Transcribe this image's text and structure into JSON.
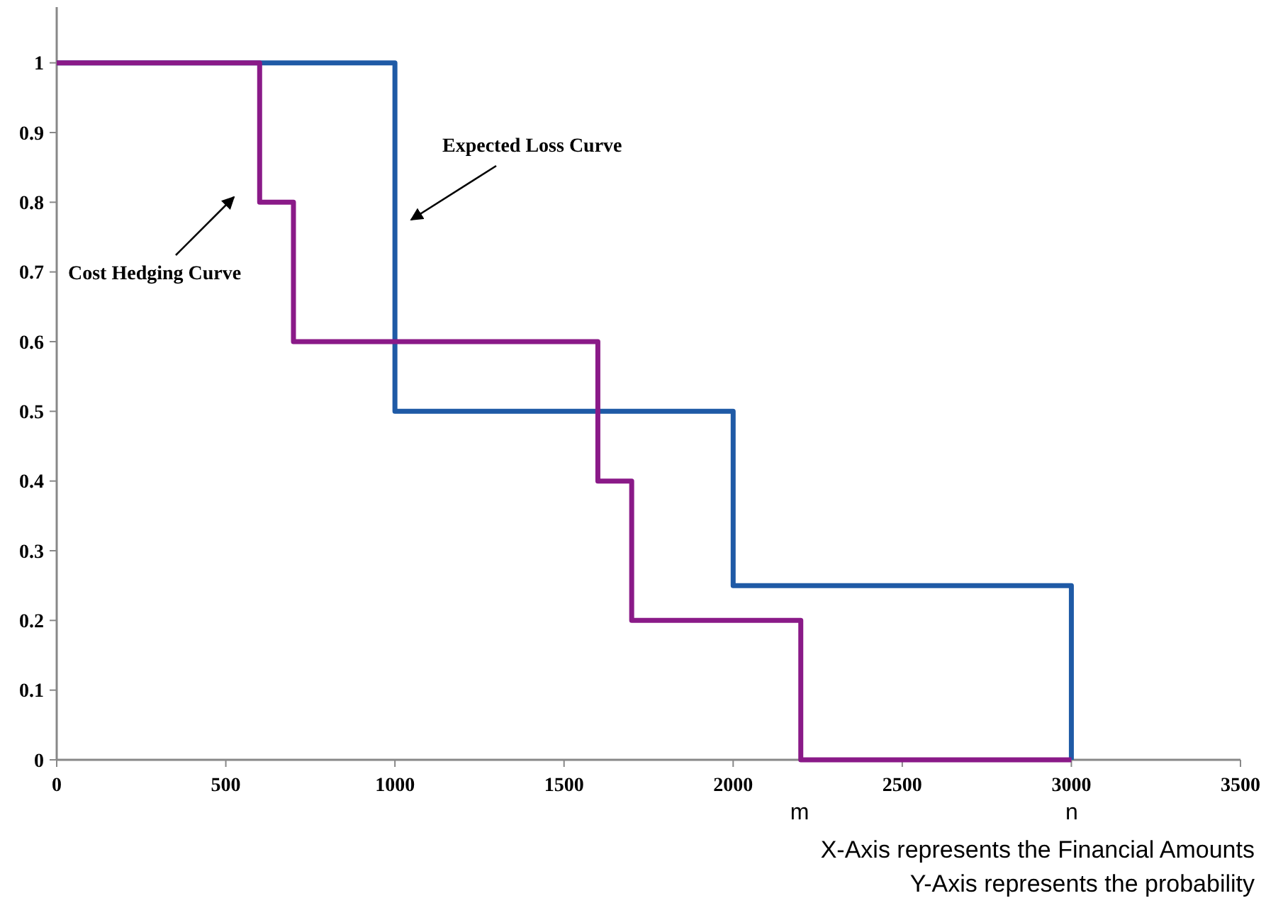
{
  "chart_data": {
    "type": "step",
    "xlim": [
      0,
      3500
    ],
    "xticks": [
      0,
      500,
      1000,
      1500,
      2000,
      2500,
      3000,
      3500
    ],
    "ylim": [
      0,
      1.08
    ],
    "yticks": [
      0,
      0.1,
      0.2,
      0.3,
      0.4,
      0.5,
      0.6,
      0.7,
      0.8,
      0.9,
      1
    ],
    "grid": false,
    "series": [
      {
        "name": "Expected Loss Curve",
        "color": "#1f5aa6",
        "x": [
          0,
          1000,
          2000,
          3000,
          3000
        ],
        "values": [
          1,
          0.5,
          0.25,
          0,
          0
        ]
      },
      {
        "name": "Cost Hedging Curve",
        "color": "#8a1a88",
        "x": [
          0,
          600,
          700,
          1600,
          1700,
          2200,
          3000
        ],
        "values": [
          1,
          0.8,
          0.6,
          0.4,
          0.2,
          0,
          0
        ]
      }
    ],
    "annotations": [
      "m",
      "n",
      "X-Axis represents the Financial Amounts",
      "Y-Axis represents the probability"
    ]
  }
}
